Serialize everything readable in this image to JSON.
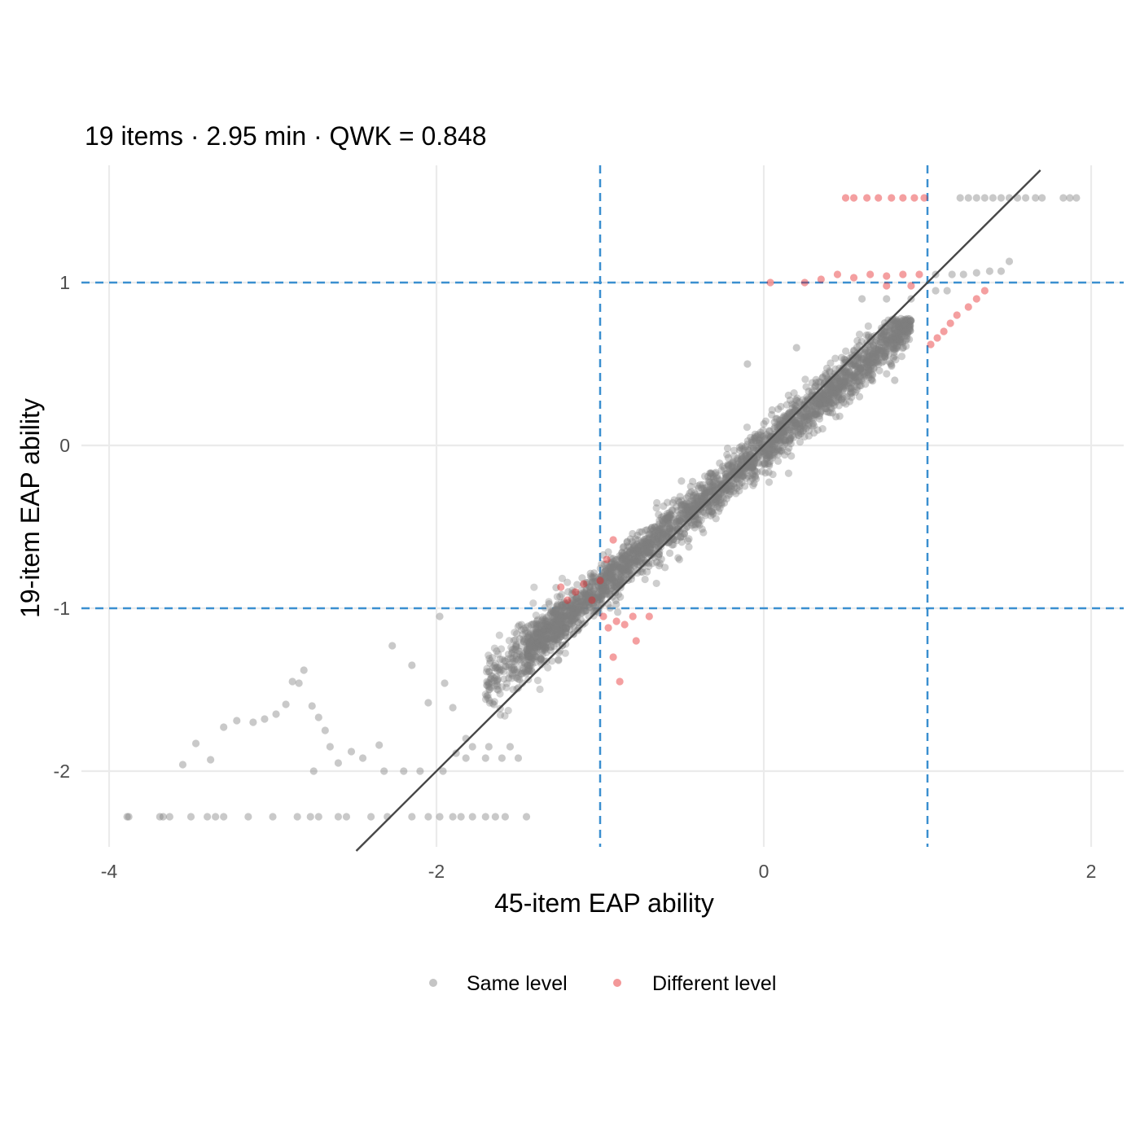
{
  "chart_data": {
    "type": "scatter",
    "title": "19 items · 2.95 min · QWK = 0.848",
    "xlabel": "45-item EAP ability",
    "ylabel": "19-item EAP ability",
    "xlim": [
      -4.05,
      2.2
    ],
    "ylim": [
      -2.45,
      1.7
    ],
    "x_ticks": [
      -4,
      -2,
      0,
      2
    ],
    "x_tick_labels": [
      "-4",
      "-2",
      "0",
      "2"
    ],
    "y_ticks": [
      -2,
      -1,
      0,
      1
    ],
    "y_tick_labels": [
      "-2",
      "-1",
      "0",
      "1"
    ],
    "grid": true,
    "reference_line": {
      "label": "identity",
      "slope": 1,
      "intercept": 0,
      "color": "#474747"
    },
    "cutoff_lines": {
      "x": [
        -1,
        1
      ],
      "y": [
        -1,
        1
      ],
      "color": "#3a8fd0",
      "style": "dashed"
    },
    "legend": {
      "position": "bottom",
      "entries": [
        {
          "label": "Same level",
          "color": "#7f7f7f"
        },
        {
          "label": "Different level",
          "color": "#e41a1c"
        }
      ]
    },
    "series": [
      {
        "name": "Same level",
        "color": "#7f7f7f",
        "points": [
          [
            -3.88,
            -2.28
          ],
          [
            -3.89,
            -2.28
          ],
          [
            -3.69,
            -2.28
          ],
          [
            -3.67,
            -2.28
          ],
          [
            -3.63,
            -2.28
          ],
          [
            -3.5,
            -2.28
          ],
          [
            -3.4,
            -2.28
          ],
          [
            -3.35,
            -2.28
          ],
          [
            -3.3,
            -2.28
          ],
          [
            -3.15,
            -2.28
          ],
          [
            -3.0,
            -2.28
          ],
          [
            -2.85,
            -2.28
          ],
          [
            -2.77,
            -2.28
          ],
          [
            -2.72,
            -2.28
          ],
          [
            -2.6,
            -2.28
          ],
          [
            -2.55,
            -2.28
          ],
          [
            -2.4,
            -2.28
          ],
          [
            -2.3,
            -2.28
          ],
          [
            -2.15,
            -2.28
          ],
          [
            -2.05,
            -2.28
          ],
          [
            -1.98,
            -2.28
          ],
          [
            -1.9,
            -2.28
          ],
          [
            -1.85,
            -2.28
          ],
          [
            -1.78,
            -2.28
          ],
          [
            -1.7,
            -2.28
          ],
          [
            -1.64,
            -2.28
          ],
          [
            -1.58,
            -2.28
          ],
          [
            -1.45,
            -2.28
          ],
          [
            -3.55,
            -1.96
          ],
          [
            -3.47,
            -1.83
          ],
          [
            -3.38,
            -1.93
          ],
          [
            -3.3,
            -1.73
          ],
          [
            -3.22,
            -1.69
          ],
          [
            -3.12,
            -1.7
          ],
          [
            -3.05,
            -1.68
          ],
          [
            -2.98,
            -1.65
          ],
          [
            -2.92,
            -1.59
          ],
          [
            -2.88,
            -1.45
          ],
          [
            -2.84,
            -1.46
          ],
          [
            -2.81,
            -1.38
          ],
          [
            -2.76,
            -1.6
          ],
          [
            -2.72,
            -1.67
          ],
          [
            -2.68,
            -1.75
          ],
          [
            -2.65,
            -1.85
          ],
          [
            -2.6,
            -1.95
          ],
          [
            -2.52,
            -1.88
          ],
          [
            -2.45,
            -1.92
          ],
          [
            -2.35,
            -1.84
          ],
          [
            -2.27,
            -1.23
          ],
          [
            -2.15,
            -1.35
          ],
          [
            -2.05,
            -1.58
          ],
          [
            -1.98,
            -1.05
          ],
          [
            -1.95,
            -1.46
          ],
          [
            -1.9,
            -1.61
          ],
          [
            -1.88,
            -1.89
          ],
          [
            -1.82,
            -1.8
          ],
          [
            -2.75,
            -2.0
          ],
          [
            -2.32,
            -2.0
          ],
          [
            -2.2,
            -2.0
          ],
          [
            -2.1,
            -2.0
          ],
          [
            -1.96,
            -2.0
          ],
          [
            -1.82,
            -1.92
          ],
          [
            -1.7,
            -1.92
          ],
          [
            -1.6,
            -1.92
          ],
          [
            -1.5,
            -1.92
          ],
          [
            -1.78,
            -1.85
          ],
          [
            -1.68,
            -1.85
          ],
          [
            -1.55,
            -1.85
          ],
          [
            1.2,
            1.52
          ],
          [
            1.25,
            1.52
          ],
          [
            1.3,
            1.52
          ],
          [
            1.35,
            1.52
          ],
          [
            1.4,
            1.52
          ],
          [
            1.45,
            1.52
          ],
          [
            1.5,
            1.52
          ],
          [
            1.55,
            1.52
          ],
          [
            1.6,
            1.52
          ],
          [
            1.66,
            1.52
          ],
          [
            1.7,
            1.52
          ],
          [
            1.83,
            1.52
          ],
          [
            1.87,
            1.52
          ],
          [
            1.91,
            1.52
          ],
          [
            1.05,
            1.05
          ],
          [
            1.15,
            1.05
          ],
          [
            1.22,
            1.05
          ],
          [
            1.3,
            1.06
          ],
          [
            1.38,
            1.07
          ],
          [
            1.45,
            1.07
          ],
          [
            1.5,
            1.13
          ],
          [
            1.05,
            0.95
          ],
          [
            1.12,
            0.95
          ],
          [
            0.6,
            0.9
          ],
          [
            0.75,
            0.9
          ],
          [
            0.9,
            0.9
          ],
          [
            -0.1,
            0.5
          ],
          [
            0.2,
            0.6
          ],
          [
            0.45,
            0.42
          ],
          [
            0.8,
            0.4
          ]
        ]
      },
      {
        "name": "Different level",
        "color": "#e41a1c",
        "points": [
          [
            0.5,
            1.52
          ],
          [
            0.55,
            1.52
          ],
          [
            0.63,
            1.52
          ],
          [
            0.7,
            1.52
          ],
          [
            0.78,
            1.52
          ],
          [
            0.85,
            1.52
          ],
          [
            0.92,
            1.52
          ],
          [
            0.98,
            1.52
          ],
          [
            0.04,
            1.0
          ],
          [
            0.25,
            1.0
          ],
          [
            0.35,
            1.02
          ],
          [
            0.45,
            1.05
          ],
          [
            0.55,
            1.03
          ],
          [
            0.65,
            1.05
          ],
          [
            0.75,
            1.04
          ],
          [
            0.85,
            1.05
          ],
          [
            0.95,
            1.05
          ],
          [
            0.75,
            0.98
          ],
          [
            0.9,
            0.98
          ],
          [
            1.02,
            0.62
          ],
          [
            1.06,
            0.66
          ],
          [
            1.1,
            0.7
          ],
          [
            1.14,
            0.75
          ],
          [
            1.18,
            0.8
          ],
          [
            1.25,
            0.85
          ],
          [
            1.3,
            0.9
          ],
          [
            1.35,
            0.95
          ],
          [
            -1.24,
            -0.87
          ],
          [
            -1.2,
            -0.95
          ],
          [
            -1.15,
            -0.9
          ],
          [
            -1.1,
            -0.85
          ],
          [
            -1.05,
            -0.95
          ],
          [
            -1.0,
            -0.83
          ],
          [
            -0.96,
            -0.7
          ],
          [
            -0.92,
            -0.58
          ],
          [
            -0.98,
            -1.05
          ],
          [
            -0.95,
            -1.12
          ],
          [
            -0.9,
            -1.08
          ],
          [
            -0.85,
            -1.1
          ],
          [
            -0.8,
            -1.05
          ],
          [
            -0.92,
            -1.3
          ],
          [
            -0.88,
            -1.45
          ],
          [
            -0.78,
            -1.2
          ],
          [
            -0.7,
            -1.05
          ]
        ]
      }
    ]
  }
}
